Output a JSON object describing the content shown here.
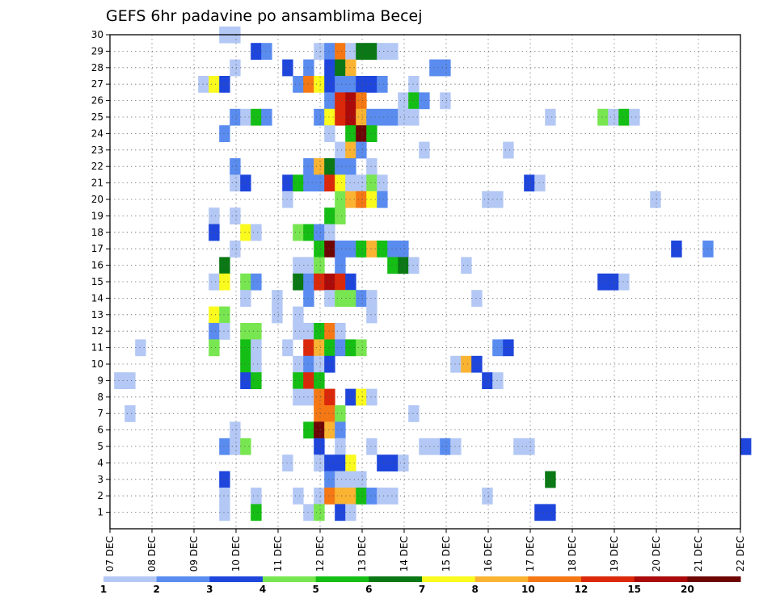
{
  "chart_data": {
    "type": "heatmap",
    "title": "GEFS 6hr padavine po ansamblima Becej",
    "xlabel": "",
    "ylabel": "",
    "x_ticks": [
      "07 DEC",
      "08 DEC",
      "09 DEC",
      "10 DEC",
      "11 DEC",
      "12 DEC",
      "13 DEC",
      "14 DEC",
      "15 DEC",
      "16 DEC",
      "17 DEC",
      "18 DEC",
      "19 DEC",
      "20 DEC",
      "21 DEC",
      "22 DEC"
    ],
    "y_ticks": [
      1,
      2,
      3,
      4,
      5,
      6,
      7,
      8,
      9,
      10,
      11,
      12,
      13,
      14,
      15,
      16,
      17,
      18,
      19,
      20,
      21,
      22,
      23,
      24,
      25,
      26,
      27,
      28,
      29,
      30
    ],
    "x_range_days": [
      0,
      15
    ],
    "y_range": [
      0,
      30
    ],
    "grid": true,
    "colorbar": {
      "labels": [
        "1",
        "2",
        "3",
        "4",
        "5",
        "6",
        "7",
        "8",
        "10",
        "12",
        "15",
        "20"
      ],
      "colors": [
        "#b4c8f5",
        "#5a8cf0",
        "#1e46dc",
        "#78e650",
        "#14be14",
        "#0a7814",
        "#fafa1e",
        "#fab432",
        "#f57814",
        "#dc280a",
        "#aa0a0a",
        "#6e0505"
      ]
    },
    "cells": [
      [
        30,
        2.6,
        1
      ],
      [
        30,
        2.85,
        1
      ],
      [
        29,
        3.35,
        3
      ],
      [
        29,
        3.6,
        2
      ],
      [
        29,
        4.85,
        1
      ],
      [
        29,
        5.1,
        2
      ],
      [
        29,
        5.35,
        9
      ],
      [
        29,
        5.6,
        1
      ],
      [
        29,
        5.85,
        6
      ],
      [
        29,
        6.1,
        6
      ],
      [
        29,
        6.35,
        1
      ],
      [
        29,
        6.6,
        1
      ],
      [
        28,
        2.85,
        1
      ],
      [
        28,
        4.1,
        3
      ],
      [
        28,
        4.6,
        2
      ],
      [
        28,
        5.1,
        3
      ],
      [
        28,
        5.35,
        6
      ],
      [
        28,
        5.6,
        8
      ],
      [
        28,
        7.6,
        2
      ],
      [
        28,
        7.85,
        2
      ],
      [
        27,
        2.1,
        1
      ],
      [
        27,
        2.35,
        7
      ],
      [
        27,
        2.6,
        3
      ],
      [
        27,
        4.35,
        2
      ],
      [
        27,
        4.6,
        9
      ],
      [
        27,
        4.85,
        7
      ],
      [
        27,
        5.1,
        3
      ],
      [
        27,
        5.35,
        2
      ],
      [
        27,
        5.6,
        2
      ],
      [
        27,
        5.85,
        3
      ],
      [
        27,
        6.1,
        3
      ],
      [
        27,
        6.35,
        2
      ],
      [
        27,
        7.1,
        1
      ],
      [
        26,
        5.1,
        2
      ],
      [
        26,
        5.35,
        10
      ],
      [
        26,
        5.6,
        11
      ],
      [
        26,
        5.85,
        9
      ],
      [
        26,
        6.85,
        1
      ],
      [
        26,
        7.1,
        5
      ],
      [
        26,
        7.35,
        2
      ],
      [
        26,
        7.85,
        1
      ],
      [
        25,
        2.85,
        2
      ],
      [
        25,
        3.1,
        1
      ],
      [
        25,
        3.35,
        5
      ],
      [
        25,
        3.6,
        2
      ],
      [
        25,
        4.85,
        2
      ],
      [
        25,
        5.1,
        7
      ],
      [
        25,
        5.35,
        10
      ],
      [
        25,
        5.6,
        11
      ],
      [
        25,
        5.85,
        8
      ],
      [
        25,
        6.1,
        2
      ],
      [
        25,
        6.35,
        2
      ],
      [
        25,
        6.6,
        2
      ],
      [
        25,
        6.85,
        1
      ],
      [
        25,
        7.1,
        1
      ],
      [
        25,
        10.35,
        1
      ],
      [
        25,
        11.6,
        4
      ],
      [
        25,
        11.85,
        1
      ],
      [
        25,
        12.1,
        5
      ],
      [
        25,
        12.35,
        1
      ],
      [
        24,
        2.6,
        2
      ],
      [
        24,
        5.1,
        1
      ],
      [
        24,
        5.6,
        5
      ],
      [
        24,
        5.85,
        12
      ],
      [
        24,
        6.1,
        5
      ],
      [
        23,
        5.35,
        1
      ],
      [
        23,
        5.6,
        8
      ],
      [
        23,
        5.85,
        2
      ],
      [
        23,
        7.35,
        1
      ],
      [
        23,
        9.35,
        1
      ],
      [
        22,
        2.85,
        2
      ],
      [
        22,
        4.6,
        2
      ],
      [
        22,
        4.85,
        8
      ],
      [
        22,
        5.1,
        6
      ],
      [
        22,
        5.35,
        2
      ],
      [
        22,
        5.6,
        2
      ],
      [
        22,
        6.1,
        1
      ],
      [
        21,
        2.85,
        1
      ],
      [
        21,
        3.1,
        3
      ],
      [
        21,
        4.1,
        3
      ],
      [
        21,
        4.35,
        5
      ],
      [
        21,
        4.6,
        2
      ],
      [
        21,
        4.85,
        2
      ],
      [
        21,
        5.1,
        10
      ],
      [
        21,
        5.35,
        7
      ],
      [
        21,
        5.6,
        1
      ],
      [
        21,
        5.85,
        1
      ],
      [
        21,
        6.1,
        4
      ],
      [
        21,
        6.35,
        1
      ],
      [
        21,
        9.85,
        3
      ],
      [
        21,
        10.1,
        1
      ],
      [
        20,
        4.1,
        1
      ],
      [
        20,
        5.35,
        4
      ],
      [
        20,
        5.6,
        8
      ],
      [
        20,
        5.85,
        9
      ],
      [
        20,
        6.1,
        7
      ],
      [
        20,
        6.35,
        2
      ],
      [
        20,
        8.85,
        1
      ],
      [
        20,
        9.1,
        1
      ],
      [
        20,
        12.85,
        1
      ],
      [
        19,
        2.35,
        1
      ],
      [
        19,
        2.85,
        1
      ],
      [
        19,
        5.1,
        5
      ],
      [
        19,
        5.35,
        4
      ],
      [
        18,
        2.35,
        3
      ],
      [
        18,
        3.1,
        7
      ],
      [
        18,
        3.35,
        1
      ],
      [
        18,
        4.35,
        4
      ],
      [
        18,
        4.6,
        5
      ],
      [
        18,
        4.85,
        2
      ],
      [
        18,
        5.1,
        1
      ],
      [
        17,
        2.85,
        1
      ],
      [
        17,
        4.85,
        5
      ],
      [
        17,
        5.1,
        12
      ],
      [
        17,
        5.35,
        2
      ],
      [
        17,
        5.6,
        2
      ],
      [
        17,
        5.85,
        5
      ],
      [
        17,
        6.1,
        8
      ],
      [
        17,
        6.35,
        5
      ],
      [
        17,
        6.6,
        2
      ],
      [
        17,
        6.85,
        2
      ],
      [
        17,
        13.35,
        3
      ],
      [
        17,
        14.1,
        2
      ],
      [
        16,
        2.6,
        6
      ],
      [
        16,
        4.35,
        1
      ],
      [
        16,
        4.6,
        1
      ],
      [
        16,
        4.85,
        4
      ],
      [
        16,
        5.35,
        2
      ],
      [
        16,
        6.6,
        5
      ],
      [
        16,
        6.85,
        6
      ],
      [
        16,
        7.1,
        1
      ],
      [
        16,
        8.35,
        1
      ],
      [
        15,
        2.35,
        1
      ],
      [
        15,
        2.6,
        7
      ],
      [
        15,
        3.1,
        4
      ],
      [
        15,
        3.35,
        2
      ],
      [
        15,
        4.35,
        6
      ],
      [
        15,
        4.6,
        2
      ],
      [
        15,
        4.85,
        10
      ],
      [
        15,
        5.1,
        11
      ],
      [
        15,
        5.35,
        10
      ],
      [
        15,
        5.6,
        3
      ],
      [
        15,
        11.6,
        3
      ],
      [
        15,
        11.85,
        3
      ],
      [
        15,
        12.1,
        1
      ],
      [
        14,
        3.1,
        1
      ],
      [
        14,
        3.85,
        1
      ],
      [
        14,
        4.6,
        2
      ],
      [
        14,
        5.1,
        1
      ],
      [
        14,
        5.35,
        4
      ],
      [
        14,
        5.6,
        4
      ],
      [
        14,
        5.85,
        2
      ],
      [
        14,
        6.1,
        1
      ],
      [
        14,
        8.6,
        1
      ],
      [
        13,
        2.35,
        7
      ],
      [
        13,
        2.6,
        4
      ],
      [
        13,
        3.85,
        1
      ],
      [
        13,
        4.35,
        1
      ],
      [
        13,
        6.1,
        1
      ],
      [
        12,
        2.35,
        2
      ],
      [
        12,
        2.6,
        1
      ],
      [
        12,
        3.1,
        4
      ],
      [
        12,
        3.35,
        4
      ],
      [
        12,
        4.35,
        1
      ],
      [
        12,
        4.6,
        1
      ],
      [
        12,
        4.85,
        5
      ],
      [
        12,
        5.1,
        9
      ],
      [
        12,
        5.35,
        1
      ],
      [
        11,
        0.6,
        1
      ],
      [
        11,
        2.35,
        4
      ],
      [
        11,
        3.1,
        5
      ],
      [
        11,
        3.35,
        1
      ],
      [
        11,
        4.1,
        1
      ],
      [
        11,
        4.6,
        10
      ],
      [
        11,
        4.85,
        8
      ],
      [
        11,
        5.1,
        5
      ],
      [
        11,
        5.35,
        2
      ],
      [
        11,
        5.6,
        5
      ],
      [
        11,
        5.85,
        4
      ],
      [
        11,
        9.1,
        2
      ],
      [
        11,
        9.35,
        3
      ],
      [
        10,
        3.1,
        5
      ],
      [
        10,
        3.35,
        1
      ],
      [
        10,
        4.35,
        1
      ],
      [
        10,
        4.6,
        2
      ],
      [
        10,
        4.85,
        1
      ],
      [
        10,
        5.1,
        3
      ],
      [
        10,
        8.1,
        1
      ],
      [
        10,
        8.35,
        8
      ],
      [
        10,
        8.6,
        3
      ],
      [
        9,
        0.1,
        1
      ],
      [
        9,
        0.35,
        1
      ],
      [
        9,
        3.1,
        3
      ],
      [
        9,
        3.35,
        5
      ],
      [
        9,
        4.35,
        5
      ],
      [
        9,
        4.6,
        10
      ],
      [
        9,
        4.85,
        5
      ],
      [
        9,
        8.85,
        3
      ],
      [
        9,
        9.1,
        1
      ],
      [
        8,
        4.35,
        1
      ],
      [
        8,
        4.6,
        1
      ],
      [
        8,
        4.85,
        9
      ],
      [
        8,
        5.1,
        10
      ],
      [
        8,
        5.6,
        3
      ],
      [
        8,
        5.85,
        7
      ],
      [
        8,
        6.1,
        1
      ],
      [
        7,
        0.35,
        1
      ],
      [
        7,
        4.85,
        9
      ],
      [
        7,
        5.1,
        9
      ],
      [
        7,
        5.35,
        4
      ],
      [
        7,
        7.1,
        1
      ],
      [
        6,
        2.85,
        1
      ],
      [
        6,
        4.6,
        5
      ],
      [
        6,
        4.85,
        12
      ],
      [
        6,
        5.1,
        8
      ],
      [
        6,
        5.35,
        2
      ],
      [
        5,
        2.6,
        2
      ],
      [
        5,
        2.85,
        1
      ],
      [
        5,
        3.1,
        4
      ],
      [
        5,
        4.85,
        3
      ],
      [
        5,
        5.35,
        1
      ],
      [
        5,
        6.1,
        1
      ],
      [
        5,
        7.35,
        1
      ],
      [
        5,
        7.6,
        1
      ],
      [
        5,
        7.85,
        2
      ],
      [
        5,
        8.1,
        1
      ],
      [
        5,
        9.6,
        1
      ],
      [
        5,
        9.85,
        1
      ],
      [
        5,
        15.0,
        3
      ],
      [
        4,
        4.1,
        1
      ],
      [
        4,
        4.85,
        1
      ],
      [
        4,
        5.1,
        3
      ],
      [
        4,
        5.35,
        3
      ],
      [
        4,
        5.6,
        7
      ],
      [
        4,
        6.35,
        3
      ],
      [
        4,
        6.6,
        3
      ],
      [
        4,
        6.85,
        1
      ],
      [
        3,
        2.6,
        3
      ],
      [
        3,
        5.1,
        2
      ],
      [
        3,
        5.35,
        1
      ],
      [
        3,
        5.6,
        1
      ],
      [
        3,
        5.85,
        1
      ],
      [
        3,
        10.35,
        6
      ],
      [
        2,
        2.6,
        1
      ],
      [
        2,
        3.35,
        1
      ],
      [
        2,
        4.35,
        1
      ],
      [
        2,
        4.85,
        1
      ],
      [
        2,
        5.1,
        9
      ],
      [
        2,
        5.35,
        8
      ],
      [
        2,
        5.6,
        8
      ],
      [
        2,
        5.85,
        5
      ],
      [
        2,
        6.1,
        2
      ],
      [
        2,
        6.35,
        1
      ],
      [
        2,
        6.6,
        1
      ],
      [
        2,
        8.85,
        1
      ],
      [
        1,
        2.6,
        1
      ],
      [
        1,
        3.35,
        5
      ],
      [
        1,
        4.6,
        1
      ],
      [
        1,
        4.85,
        4
      ],
      [
        1,
        5.35,
        3
      ],
      [
        1,
        5.6,
        1
      ],
      [
        1,
        10.1,
        3
      ],
      [
        1,
        10.35,
        3
      ]
    ]
  }
}
